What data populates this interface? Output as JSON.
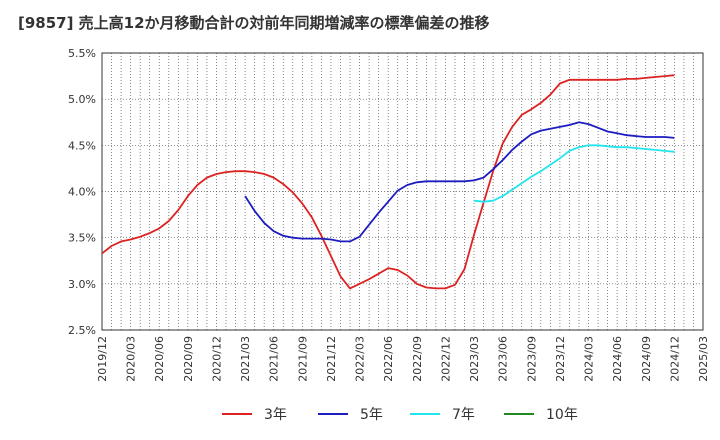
{
  "chart_data": {
    "type": "line",
    "title": "[9857]  売上高12か月移動合計の対前年同期増減率の標準偏差の推移",
    "y_ticks": [
      "2.5%",
      "3.0%",
      "3.5%",
      "4.0%",
      "4.5%",
      "5.0%",
      "5.5%"
    ],
    "x_ticks": [
      "2019/12",
      "2020/03",
      "2020/06",
      "2020/09",
      "2020/12",
      "2021/03",
      "2021/06",
      "2021/09",
      "2021/12",
      "2022/03",
      "2022/06",
      "2022/09",
      "2022/12",
      "2023/03",
      "2023/06",
      "2023/09",
      "2023/12",
      "2024/03",
      "2024/06",
      "2024/09",
      "2024/12",
      "2025/03"
    ],
    "ylim": [
      2.5,
      5.5
    ],
    "grid": true,
    "legend_position": "bottom",
    "series": [
      {
        "name": "3年",
        "color": "#dd2222",
        "x": [
          "2019/12",
          "2020/01",
          "2020/02",
          "2020/03",
          "2020/04",
          "2020/05",
          "2020/06",
          "2020/07",
          "2020/08",
          "2020/09",
          "2020/10",
          "2020/11",
          "2020/12",
          "2021/01",
          "2021/02",
          "2021/03",
          "2021/04",
          "2021/05",
          "2021/06",
          "2021/07",
          "2021/08",
          "2021/09",
          "2021/10",
          "2021/11",
          "2021/12",
          "2022/01",
          "2022/02",
          "2022/03",
          "2022/04",
          "2022/05",
          "2022/06",
          "2022/07",
          "2022/08",
          "2022/09",
          "2022/10",
          "2022/11",
          "2022/12",
          "2023/01",
          "2023/02",
          "2023/03",
          "2023/04",
          "2023/05",
          "2023/06",
          "2023/07",
          "2023/08",
          "2023/09",
          "2023/10",
          "2023/11",
          "2023/12",
          "2024/01",
          "2024/02",
          "2024/03",
          "2024/04",
          "2024/05",
          "2024/06",
          "2024/07",
          "2024/08",
          "2024/09",
          "2024/10",
          "2024/11",
          "2024/12"
        ],
        "values": [
          3.33,
          3.41,
          3.46,
          3.48,
          3.51,
          3.55,
          3.6,
          3.68,
          3.8,
          3.95,
          4.07,
          4.15,
          4.19,
          4.21,
          4.22,
          4.22,
          4.21,
          4.19,
          4.15,
          4.08,
          3.99,
          3.87,
          3.72,
          3.52,
          3.3,
          3.08,
          2.95,
          3.0,
          3.05,
          3.11,
          3.17,
          3.15,
          3.09,
          3.0,
          2.96,
          2.95,
          2.95,
          2.99,
          3.16,
          3.53,
          3.88,
          4.22,
          4.52,
          4.7,
          4.83,
          4.89,
          4.96,
          5.05,
          5.17,
          5.21,
          5.21,
          5.21,
          5.21,
          5.21,
          5.21,
          5.22,
          5.22,
          5.23,
          5.24,
          5.25,
          5.26
        ]
      },
      {
        "name": "5年",
        "color": "#1c1cc0",
        "x": [
          "2021/03",
          "2021/04",
          "2021/05",
          "2021/06",
          "2021/07",
          "2021/08",
          "2021/09",
          "2021/10",
          "2021/11",
          "2021/12",
          "2022/01",
          "2022/02",
          "2022/03",
          "2022/04",
          "2022/05",
          "2022/06",
          "2022/07",
          "2022/08",
          "2022/09",
          "2022/10",
          "2022/11",
          "2022/12",
          "2023/01",
          "2023/02",
          "2023/03",
          "2023/04",
          "2023/05",
          "2023/06",
          "2023/07",
          "2023/08",
          "2023/09",
          "2023/10",
          "2023/11",
          "2023/12",
          "2024/01",
          "2024/02",
          "2024/03",
          "2024/04",
          "2024/05",
          "2024/06",
          "2024/07",
          "2024/08",
          "2024/09",
          "2024/10",
          "2024/11",
          "2024/12"
        ],
        "values": [
          3.95,
          3.79,
          3.66,
          3.57,
          3.52,
          3.5,
          3.49,
          3.49,
          3.49,
          3.48,
          3.46,
          3.46,
          3.51,
          3.64,
          3.77,
          3.89,
          4.01,
          4.07,
          4.1,
          4.11,
          4.11,
          4.11,
          4.11,
          4.11,
          4.12,
          4.15,
          4.24,
          4.34,
          4.45,
          4.54,
          4.62,
          4.66,
          4.68,
          4.7,
          4.72,
          4.75,
          4.73,
          4.69,
          4.65,
          4.63,
          4.61,
          4.6,
          4.59,
          4.59,
          4.59,
          4.58
        ]
      },
      {
        "name": "7年",
        "color": "#22e5ee",
        "x": [
          "2023/03",
          "2023/04",
          "2023/05",
          "2023/06",
          "2023/07",
          "2023/08",
          "2023/09",
          "2023/10",
          "2023/11",
          "2023/12",
          "2024/01",
          "2024/02",
          "2024/03",
          "2024/04",
          "2024/05",
          "2024/06",
          "2024/07",
          "2024/08",
          "2024/09",
          "2024/10",
          "2024/11",
          "2024/12"
        ],
        "values": [
          3.9,
          3.89,
          3.9,
          3.95,
          4.02,
          4.09,
          4.16,
          4.22,
          4.29,
          4.36,
          4.44,
          4.48,
          4.5,
          4.5,
          4.49,
          4.48,
          4.48,
          4.47,
          4.46,
          4.45,
          4.44,
          4.43
        ]
      },
      {
        "name": "10年",
        "color": "#228822",
        "x": [],
        "values": []
      }
    ]
  }
}
